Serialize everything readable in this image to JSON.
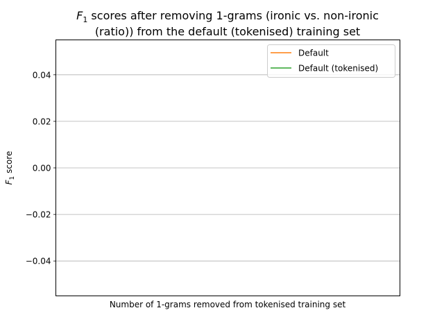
{
  "chart_data": {
    "type": "line",
    "title_line1_prefix": "F",
    "title_line1_sub": "1",
    "title_line1_rest": " scores after removing 1-grams (ironic vs. non-ironic",
    "title_line2": "(ratio)) from the default (tokenised) training set",
    "xlabel": "Number of 1-grams removed from tokenised training set",
    "ylabel_prefix": "F",
    "ylabel_sub": "1",
    "ylabel_rest": " score",
    "ylim": [
      -0.055,
      0.055
    ],
    "yticks": [
      {
        "value": 0.04,
        "label": "0.04"
      },
      {
        "value": 0.02,
        "label": "0.02"
      },
      {
        "value": 0.0,
        "label": "0.00"
      },
      {
        "value": -0.02,
        "label": "−0.02"
      },
      {
        "value": -0.04,
        "label": "−0.04"
      }
    ],
    "grid": "y",
    "legend_position": "top-right",
    "series": [
      {
        "name": "Default",
        "color": "#ff7f0e",
        "x": [],
        "y": []
      },
      {
        "name": "Default (tokenised)",
        "color": "#2ca02c",
        "x": [],
        "y": []
      }
    ]
  }
}
